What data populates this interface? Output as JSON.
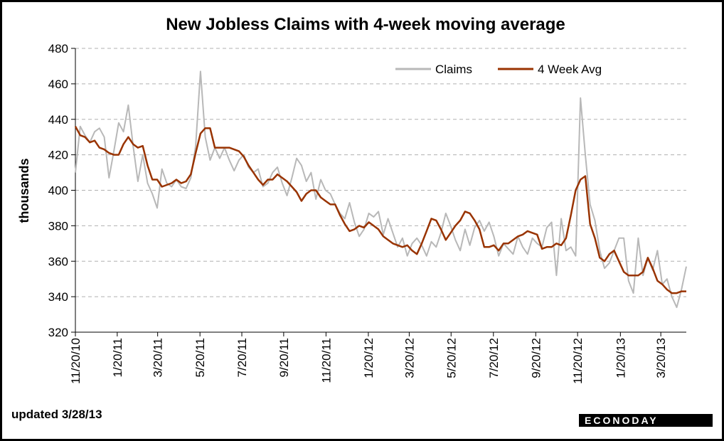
{
  "chart_data": {
    "type": "line",
    "title": "New Jobless Claims with 4-week moving average",
    "ylabel": "thousands",
    "ylim": [
      320,
      480
    ],
    "yticks": [
      320,
      340,
      360,
      380,
      400,
      420,
      440,
      460,
      480
    ],
    "grid": "horizontal dashed",
    "legend_position": "top-right",
    "x_tick_labels": [
      "11/20/10",
      "1/20/11",
      "3/20/11",
      "5/20/11",
      "7/20/11",
      "9/20/11",
      "11/20/11",
      "1/20/12",
      "3/20/12",
      "5/20/12",
      "7/20/12",
      "9/20/12",
      "11/20/12",
      "1/20/13",
      "3/20/13"
    ],
    "x_tick_weeks": [
      0,
      8.7,
      17.1,
      25.9,
      34.6,
      43.3,
      52.1,
      60.9,
      69.4,
      78.1,
      86.9,
      95.7,
      104.4,
      113.3,
      121.7
    ],
    "series": [
      {
        "name": "Claims",
        "color": "#b8b8b8",
        "values": [
          410,
          436,
          431,
          427,
          433,
          435,
          430,
          407,
          422,
          438,
          433,
          448,
          425,
          405,
          420,
          404,
          398,
          390,
          412,
          404,
          402,
          406,
          402,
          401,
          407,
          425,
          467,
          430,
          417,
          424,
          418,
          424,
          417,
          411,
          417,
          420,
          413,
          410,
          412,
          402,
          404,
          410,
          413,
          404,
          397,
          407,
          418,
          414,
          405,
          410,
          395,
          406,
          400,
          398,
          392,
          387,
          384,
          393,
          382,
          374,
          378,
          387,
          385,
          388,
          375,
          384,
          376,
          368,
          373,
          363,
          370,
          373,
          369,
          363,
          371,
          368,
          376,
          387,
          380,
          372,
          366,
          378,
          369,
          379,
          383,
          377,
          382,
          374,
          363,
          370,
          367,
          364,
          374,
          368,
          364,
          373,
          370,
          368,
          379,
          382,
          352,
          384,
          366,
          368,
          363,
          452,
          420,
          392,
          383,
          366,
          356,
          359,
          366,
          373,
          373,
          349,
          342,
          373,
          352,
          362,
          355,
          366,
          347,
          350,
          340,
          334,
          344,
          357
        ]
      },
      {
        "name": "4 Week Avg",
        "color": "#993300",
        "values": [
          436,
          431,
          430,
          427,
          428,
          424,
          423,
          421,
          420,
          420,
          426,
          430,
          426,
          424,
          425,
          414,
          406,
          406,
          402,
          403,
          404,
          406,
          404,
          405,
          409,
          421,
          432,
          435,
          435,
          424,
          424,
          424,
          424,
          423,
          422,
          419,
          414,
          410,
          406,
          403,
          406,
          406,
          409,
          407,
          405,
          402,
          399,
          394,
          398,
          400,
          400,
          396,
          394,
          392,
          392,
          386,
          381,
          377,
          378,
          380,
          379,
          382,
          380,
          378,
          374,
          372,
          370,
          369,
          368,
          369,
          366,
          364,
          370,
          377,
          384,
          383,
          378,
          372,
          376,
          380,
          383,
          388,
          387,
          383,
          378,
          368,
          368,
          369,
          366,
          370,
          370,
          372,
          374,
          375,
          377,
          376,
          375,
          367,
          368,
          368,
          370,
          369,
          373,
          386,
          400,
          406,
          408,
          381,
          373,
          362,
          360,
          364,
          366,
          360,
          354,
          352,
          352,
          352,
          354,
          362,
          356,
          349,
          347,
          344,
          342,
          342,
          343,
          343
        ]
      }
    ],
    "footnote": "updated 3/28/13",
    "brand": "ECONODAY"
  }
}
